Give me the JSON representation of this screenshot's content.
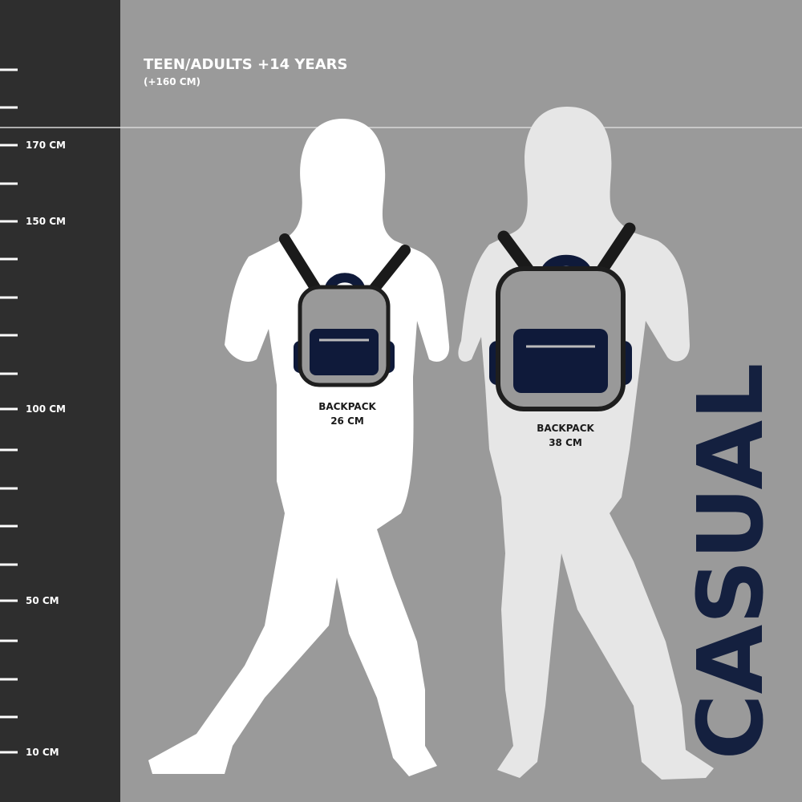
{
  "header": {
    "title": "TEEN/ADULTS +14 YEARS",
    "subtitle": "(+160 CM)"
  },
  "ruler": {
    "labels": [
      "170 CM",
      "150 CM",
      "100 CM",
      "50 CM",
      "10 CM"
    ]
  },
  "backpacks": [
    {
      "label": "BACKPACK",
      "size": "26 CM"
    },
    {
      "label": "BACKPACK",
      "size": "38 CM"
    }
  ],
  "brand": "CASUAL"
}
